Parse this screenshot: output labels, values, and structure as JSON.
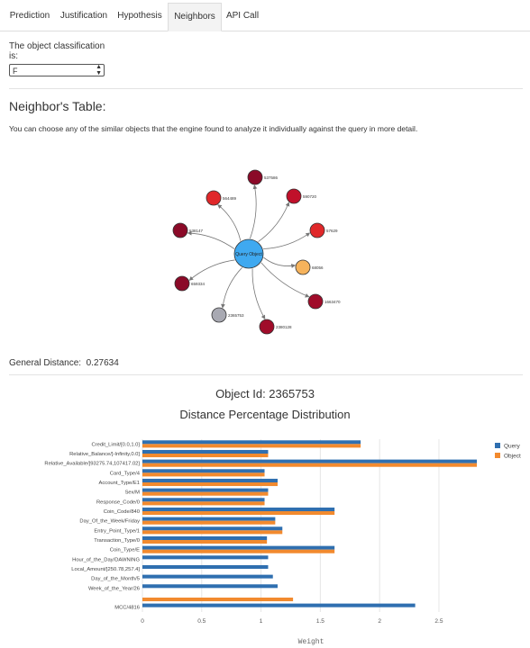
{
  "tabs": [
    {
      "label": "Prediction",
      "active": false
    },
    {
      "label": "Justification",
      "active": false
    },
    {
      "label": "Hypothesis",
      "active": false
    },
    {
      "label": "Neighbors",
      "active": true
    },
    {
      "label": "API Call",
      "active": false
    }
  ],
  "classification": {
    "label": "The object classification is:",
    "selected": "F"
  },
  "neighbors": {
    "title": "Neighbor's Table:",
    "description": "You can choose any of the similar objects that the engine found to analyze it individually against the query in more detail.",
    "center_label": "Query Object",
    "nodes": [
      {
        "label": "537586",
        "color": "#8b0a28"
      },
      {
        "label": "564489",
        "color": "#e0282a"
      },
      {
        "label": "590720",
        "color": "#c0102a"
      },
      {
        "label": "538147",
        "color": "#8b0a28"
      },
      {
        "label": "57629",
        "color": "#e0282a"
      },
      {
        "label": "68056",
        "color": "#f6b35c"
      },
      {
        "label": "659334",
        "color": "#8b0a28"
      },
      {
        "label": "1663470",
        "color": "#a00c2a"
      },
      {
        "label": "2365753",
        "color": "#a8a9b2"
      },
      {
        "label": "2380128",
        "color": "#a00c2a"
      }
    ],
    "center_color": "#3fa9f0"
  },
  "general_distance": {
    "label": "General Distance:",
    "value": "0.27634"
  },
  "object": {
    "id_label": "Object Id: 2365753",
    "chart_title": "Distance Percentage Distribution"
  },
  "chart_data": {
    "type": "bar",
    "orientation": "horizontal",
    "title": "Distance Percentage Distribution",
    "xlabel": "Weight",
    "ylabel": "",
    "xlim": [
      0,
      2.85
    ],
    "xticks": [
      0,
      0.5,
      1,
      1.5,
      2,
      2.5
    ],
    "xtick_labels": [
      "0",
      "0.5",
      "1",
      "1.5",
      "2",
      "2.5"
    ],
    "grid": true,
    "legend_position": "top-right",
    "categories": [
      "Credit_Limit/[0.0,1.0]",
      "Relative_Balance/]-Infinity,0.0]",
      "Relative_Available/]93275.74,107417.02]",
      "Card_Type/4",
      "Account_Type/E1",
      "Sex/M",
      "Response_Code/0",
      "Coin_Code/840",
      "Day_Of_the_Week/Friday",
      "Entry_Point_Type/1",
      "Transaction_Type/0",
      "Coin_Type/E",
      "Hour_of_the_Day/DAWNING",
      "Local_Amount/]250.78,257.4]",
      "Day_of_the_Month/5",
      "Week_of_the_Year/26",
      "",
      "MCC/4816"
    ],
    "series": [
      {
        "name": "Query",
        "color": "#2f6fb0",
        "values": [
          1.84,
          1.06,
          2.82,
          1.03,
          1.14,
          1.06,
          1.03,
          1.62,
          1.12,
          1.18,
          1.05,
          1.62,
          1.06,
          1.06,
          1.1,
          1.14,
          null,
          2.3
        ]
      },
      {
        "name": "Object",
        "color": "#f28a2e",
        "values": [
          1.84,
          1.06,
          2.82,
          1.03,
          1.14,
          1.06,
          1.03,
          1.62,
          1.12,
          1.18,
          1.05,
          1.62,
          null,
          null,
          null,
          null,
          1.27,
          null
        ]
      }
    ]
  }
}
